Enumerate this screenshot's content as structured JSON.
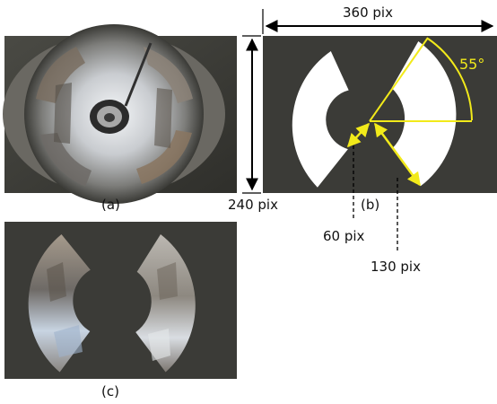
{
  "labels": {
    "panel_a": "(a)",
    "panel_b": "(b)",
    "panel_c": "(c)",
    "width": "360 pix",
    "height": "240 pix",
    "inner_radius": "60 pix",
    "outer_radius": "130 pix",
    "angle": "55°"
  },
  "colors": {
    "panel_background": "#3b3b37",
    "mask": "#ffffff",
    "annotation": "#f2ea1a"
  }
}
